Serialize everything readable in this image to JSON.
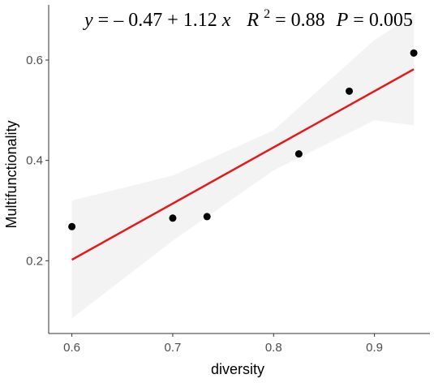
{
  "chart_data": {
    "type": "scatter",
    "xlabel": "diversity",
    "ylabel": "Multifunctionality",
    "xlim": [
      0.577,
      0.955
    ],
    "ylim": [
      0.055,
      0.71
    ],
    "x_ticks": [
      0.6,
      0.7,
      0.8,
      0.9
    ],
    "y_ticks": [
      0.2,
      0.4,
      0.6
    ],
    "x_tick_labels": [
      "0.6",
      "0.7",
      "0.8",
      "0.9"
    ],
    "y_tick_labels": [
      "0.2",
      "0.4",
      "0.6"
    ],
    "points": {
      "x": [
        0.6,
        0.7,
        0.734,
        0.825,
        0.875,
        0.939
      ],
      "y": [
        0.268,
        0.285,
        0.288,
        0.413,
        0.538,
        0.614
      ]
    },
    "fit": {
      "x_range": [
        0.6,
        0.939
      ],
      "intercept": -0.47,
      "slope": 1.12,
      "ci_x": [
        0.6,
        0.7,
        0.8,
        0.9,
        0.939
      ],
      "ci_lower": [
        0.085,
        0.24,
        0.38,
        0.48,
        0.47
      ],
      "ci_upper": [
        0.32,
        0.37,
        0.46,
        0.64,
        0.69
      ]
    },
    "annotation": {
      "y": "y",
      "equals1": " = – 0.47 + 1.12 ",
      "x": "x",
      "r": "R",
      "r_sup": "2",
      "equals2": " = 0.88 ",
      "p": "P",
      "equals3": " = 0.005"
    },
    "grid": false,
    "legend": "none",
    "colors": {
      "points": "#000000",
      "fit_line": "#e31a1c",
      "ci_band": "#ebebeb",
      "axis": "#333333",
      "tick_label": "#4d4d4d"
    }
  }
}
